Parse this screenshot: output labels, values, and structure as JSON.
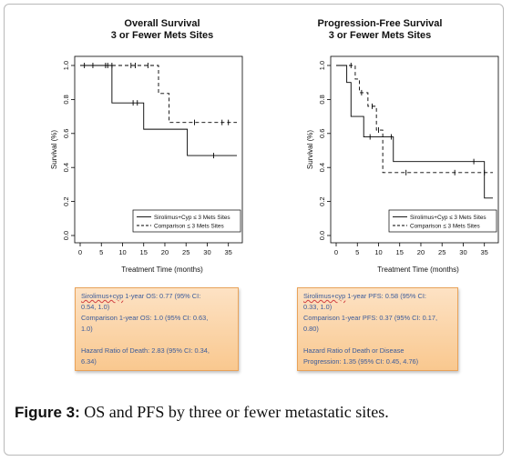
{
  "chart_data": [
    {
      "type": "line",
      "title": [
        "Overall Survival",
        "3 or Fewer Mets Sites"
      ],
      "xlabel": "Treatment Time (months)",
      "ylabel": "Survival (%)",
      "xlim": [
        0,
        37
      ],
      "ylim": [
        0,
        1.0
      ],
      "x_ticks": [
        "0",
        "5",
        "10",
        "15",
        "20",
        "25",
        "30",
        "35"
      ],
      "y_ticks": [
        "0.0",
        "0.2",
        "0.4",
        "0.6",
        "0.8",
        "1.0"
      ],
      "legend_position": "bottom-right",
      "series": [
        {
          "name": "Sirolimus+Cyp ≤ 3 Mets Sites",
          "style": "solid",
          "steps": [
            [
              0,
              1.0
            ],
            [
              7.5,
              0.78
            ],
            [
              15,
              0.625
            ],
            [
              25.3,
              0.47
            ],
            [
              37,
              0.47
            ]
          ],
          "censored": [
            [
              1,
              1.0
            ],
            [
              3,
              1.0
            ],
            [
              6,
              1.0
            ],
            [
              12.5,
              0.78
            ],
            [
              13.5,
              0.78
            ],
            [
              31.5,
              0.47
            ]
          ]
        },
        {
          "name": "Comparison ≤ 3 Mets Sites",
          "style": "dashed",
          "steps": [
            [
              0,
              1.0
            ],
            [
              18.5,
              0.835
            ],
            [
              21,
              0.665
            ],
            [
              37,
              0.665
            ]
          ],
          "censored": [
            [
              6.5,
              1.0
            ],
            [
              7.5,
              1.0
            ],
            [
              12,
              1.0
            ],
            [
              13,
              1.0
            ],
            [
              16,
              1.0
            ],
            [
              27,
              0.665
            ],
            [
              33.5,
              0.665
            ],
            [
              35,
              0.665
            ]
          ]
        }
      ]
    },
    {
      "type": "line",
      "title": [
        "Progression-Free Survival",
        "3 or Fewer Mets Sites"
      ],
      "xlabel": "Treatment Time (months)",
      "ylabel": "Survival (%)",
      "xlim": [
        0,
        37
      ],
      "ylim": [
        0,
        1.0
      ],
      "x_ticks": [
        "0",
        "5",
        "10",
        "15",
        "20",
        "25",
        "30",
        "35"
      ],
      "y_ticks": [
        "0.0",
        "0.2",
        "0.4",
        "0.6",
        "0.8",
        "1.0"
      ],
      "legend_position": "bottom-right",
      "series": [
        {
          "name": "Sirolimus+Cyp ≤ 3 Mets Sites",
          "style": "solid",
          "steps": [
            [
              0,
              1.0
            ],
            [
              2.5,
              0.9
            ],
            [
              3.5,
              0.7
            ],
            [
              6.5,
              0.58
            ],
            [
              13.5,
              0.435
            ],
            [
              35,
              0.22
            ],
            [
              37,
              0.22
            ]
          ],
          "censored": [
            [
              8,
              0.58
            ],
            [
              13,
              0.58
            ],
            [
              32.5,
              0.435
            ]
          ]
        },
        {
          "name": "Comparison ≤ 3 Mets Sites",
          "style": "dashed",
          "steps": [
            [
              0,
              1.0
            ],
            [
              4.5,
              0.92
            ],
            [
              5.5,
              0.84
            ],
            [
              7.5,
              0.76
            ],
            [
              9.5,
              0.62
            ],
            [
              11,
              0.37
            ],
            [
              37,
              0.37
            ]
          ],
          "censored": [
            [
              3.5,
              1.0
            ],
            [
              6,
              0.84
            ],
            [
              8.5,
              0.76
            ],
            [
              10,
              0.62
            ],
            [
              16.5,
              0.37
            ],
            [
              28,
              0.37
            ],
            [
              35,
              0.37
            ]
          ]
        }
      ]
    }
  ],
  "boxes": {
    "left": {
      "line1_sq": "Sirolimus+cyp",
      "line1_rest": " 1-year OS:  0.77 (95% CI:",
      "line2": "0.54, 1.0)",
      "line3": "Comparison 1-year OS: 1.0 (95% CI: 0.63,",
      "line4": "1.0)",
      "line5": "Hazard Ratio of Death: 2.83 (95% CI: 0.34,",
      "line6": "6.34)"
    },
    "right": {
      "line1_sq": "Sirolimus+cyp",
      "line1_rest": " 1-year PFS: 0.58 (95% CI:",
      "line2": "0.33, 1.0)",
      "line3": "Comparison 1-year PFS: 0.37 (95% CI: 0.17,",
      "line4": "0.80)",
      "line5": "Hazard Ratio of Death or Disease",
      "line6": "Progression: 1.35 (95% CI: 0.45, 4.76)"
    }
  },
  "caption": {
    "label": "Figure 3:",
    "text": " OS and PFS by three or fewer metastatic sites."
  }
}
